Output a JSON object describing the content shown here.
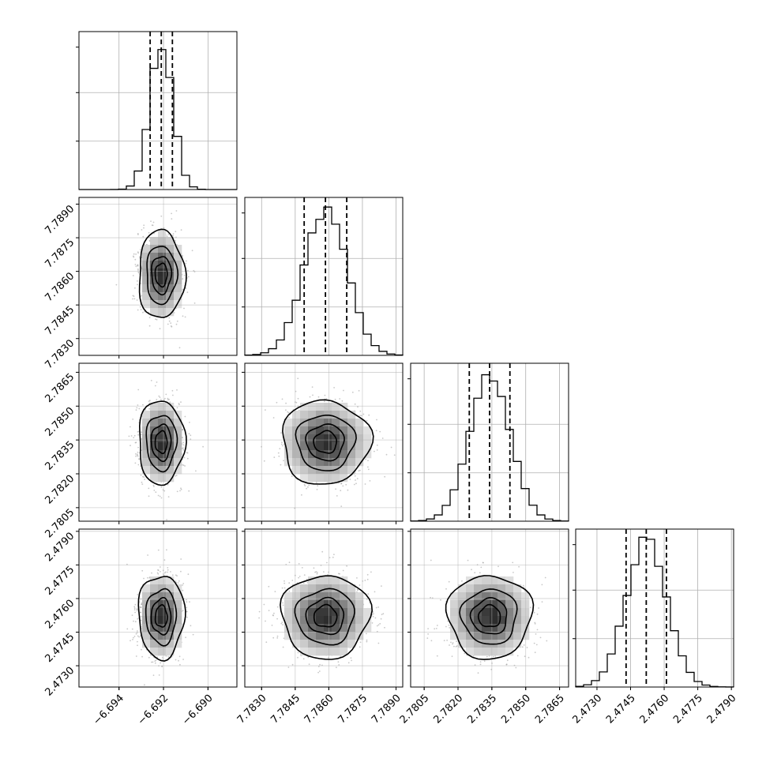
{
  "chart_data": {
    "type": "corner",
    "params": [
      {
        "median": -6.6921,
        "q16": -6.6926,
        "q84": -6.6916,
        "sigma": 0.0005,
        "range": [
          -6.6958,
          -6.6887
        ],
        "ticks": [
          -6.694,
          -6.692,
          -6.69
        ],
        "tick_labels": [
          "−6.694",
          "−6.692",
          "−6.690"
        ]
      },
      {
        "median": 7.78585,
        "q16": 7.7849,
        "q84": 7.7868,
        "sigma": 0.00095,
        "range": [
          7.78225,
          7.7893
        ],
        "ticks": [
          7.783,
          7.7845,
          7.786,
          7.7875,
          7.789
        ],
        "tick_labels": [
          "7.7830",
          "7.7845",
          "7.7860",
          "7.7875",
          "7.7890"
        ]
      },
      {
        "median": 2.7834,
        "q16": 2.7825,
        "q84": 2.7843,
        "sigma": 0.0009,
        "range": [
          2.7799,
          2.7869
        ],
        "ticks": [
          2.7805,
          2.782,
          2.7835,
          2.785,
          2.7865
        ],
        "tick_labels": [
          "2.7805",
          "2.7820",
          "2.7835",
          "2.7850",
          "2.7865"
        ]
      },
      {
        "median": 2.4752,
        "q16": 2.4743,
        "q84": 2.4761,
        "sigma": 0.0009,
        "range": [
          2.47205,
          2.4791
        ],
        "ticks": [
          2.473,
          2.4745,
          2.476,
          2.4775,
          2.479
        ],
        "tick_labels": [
          "2.4730",
          "2.4745",
          "2.4760",
          "2.4775",
          "2.4790"
        ]
      }
    ],
    "histogram_bins": 20,
    "quantiles": [
      0.16,
      0.5,
      0.84
    ],
    "contour_levels_sigma": [
      0.5,
      1.0,
      1.5,
      2.0
    ],
    "grid": true,
    "colors": {
      "line": "#000000",
      "grid": "#b0b0b0",
      "points": "#9a9a9a"
    }
  }
}
